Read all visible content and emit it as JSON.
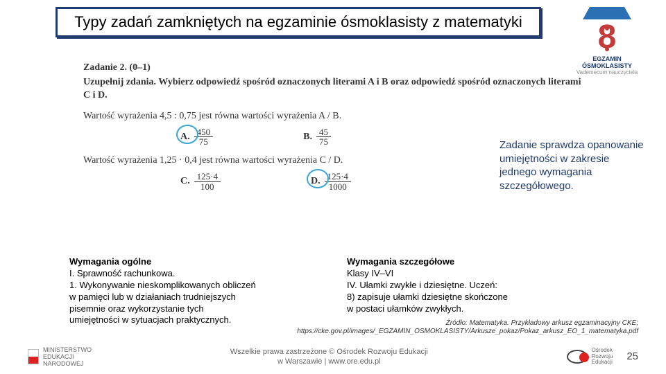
{
  "title": "Typy zadań zamkniętych na egzaminie ósmoklasisty z matematyki",
  "logo": {
    "line1": "EGZAMIN ÓSMOKLASISTY",
    "line2": "Vademecum nauczyciela"
  },
  "task": {
    "header": "Zadanie 2. (0–1)",
    "instruction": "Uzupełnij zdania. Wybierz odpowiedź spośród oznaczonych literami A i B oraz odpowiedź spośród oznaczonych literami C i D.",
    "stmt1": "Wartość wyrażenia 4,5 : 0,75 jest równa wartości wyrażenia A / B.",
    "row1": {
      "A": {
        "label": "A.",
        "num": "450",
        "den": "75",
        "circled": true
      },
      "B": {
        "label": "B.",
        "num": "45",
        "den": "75",
        "circled": false
      }
    },
    "stmt2": "Wartość wyrażenia 1,25 · 0,4 jest równa wartości wyrażenia C / D.",
    "row2": {
      "C": {
        "label": "C.",
        "num": "125·4",
        "den": "100",
        "circled": false
      },
      "D": {
        "label": "D.",
        "num": "125·4",
        "den": "1000",
        "circled": true
      }
    }
  },
  "annotation": "Zadanie sprawdza opanowanie umiejętności w zakresie jednego wymagania szczegółowego.",
  "requirements": {
    "general": {
      "heading": "Wymagania ogólne",
      "lines": [
        "I. Sprawność rachunkowa.",
        "1. Wykonywanie nieskomplikowanych obliczeń",
        "  w pamięci lub w działaniach trudniejszych",
        "  pisemnie oraz wykorzystanie tych",
        "  umiejętności w sytuacjach praktycznych."
      ]
    },
    "specific": {
      "heading": "Wymagania szczegółowe",
      "lines": [
        "Klasy IV–VI",
        "IV. Ułamki zwykłe i dziesiętne. Uczeń:",
        "8) zapisuje ułamki dziesiętne skończone",
        "  w postaci ułamków zwykłych."
      ]
    }
  },
  "source": {
    "l1": "Źródło: Matematyka. Przykładowy arkusz egzaminacyjny CKE;",
    "l2": "https://cke.gov.pl/images/_EGZAMIN_OSMOKLASISTY/Arkusze_pokaz/Pokaz_arkusz_EO_1_matematyka.pdf"
  },
  "footer": {
    "ministry": "MINISTERSTWO\nEDUKACJI\nNARODOWEJ",
    "center_l1": "Wszelkie prawa zastrzeżone © Ośrodek Rozwoju Edukacji",
    "center_l2": "w Warszawie | www.ore.edu.pl",
    "ore": "Ośrodek\nRozwoju\nEdukacji",
    "page": "25"
  },
  "colors": {
    "title_border": "#1f3b6f",
    "annotation_text": "#1f3b6f",
    "circle": "#3aa5d8",
    "logo_eight": "#c33b3b",
    "logo_cap": "#2b6fb5"
  }
}
